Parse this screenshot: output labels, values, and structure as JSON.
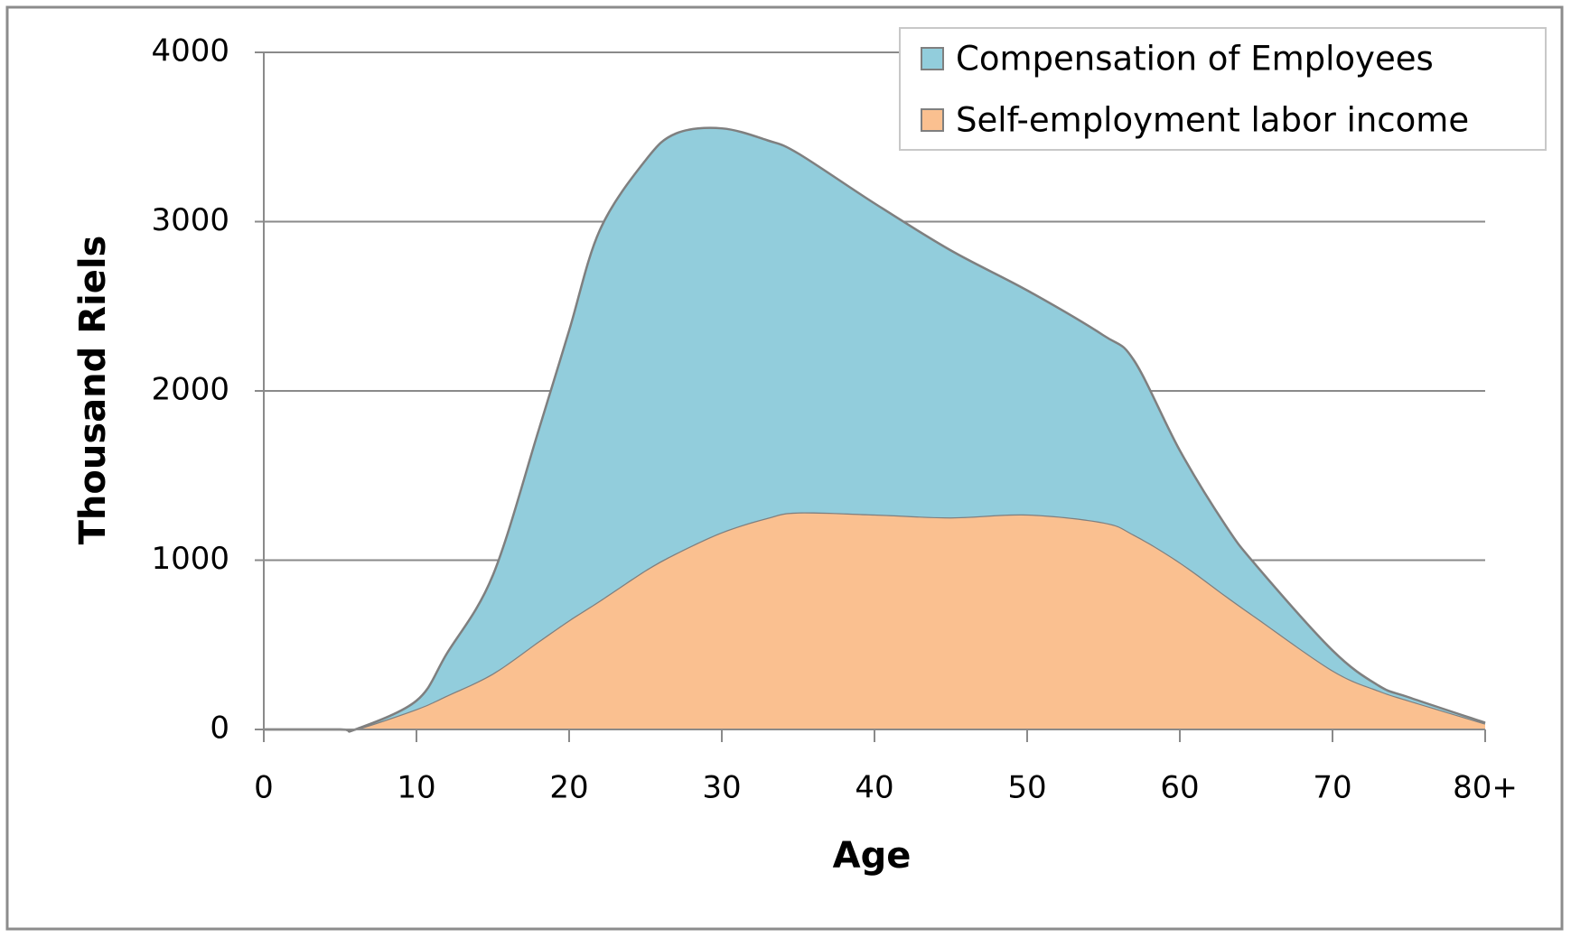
{
  "chart_data": {
    "type": "area",
    "stacked": true,
    "x_label": "Age",
    "y_label": "Thousand Riels",
    "x": [
      0,
      5,
      6,
      10,
      12,
      15,
      18,
      20,
      22,
      25,
      27,
      30,
      33,
      35,
      40,
      45,
      50,
      55,
      57,
      60,
      63,
      65,
      70,
      73,
      75,
      80
    ],
    "series": [
      {
        "name": "Compensation of Employees",
        "color": "#92cddc",
        "values": [
          0,
          0,
          0,
          50,
          250,
          580,
          1247,
          1712,
          2188,
          2422,
          2481,
          2386,
          2230,
          2121,
          1838,
          1577,
          1324,
          1105,
          1030,
          661,
          415,
          307,
          118,
          30,
          19,
          5
        ]
      },
      {
        "name": "Self-employment labor income",
        "color": "#fac090",
        "values": [
          0,
          0,
          0,
          120,
          200,
          330,
          520,
          645,
          760,
          940,
          1040,
          1165,
          1250,
          1282,
          1270,
          1253,
          1270,
          1223,
          1150,
          987,
          790,
          662,
          349,
          230,
          171,
          35
        ]
      }
    ],
    "xlim": [
      0,
      80
    ],
    "xticks": [
      0,
      10,
      20,
      30,
      40,
      50,
      60,
      70,
      {
        "value": 80,
        "label": "80+"
      }
    ],
    "ylim": [
      0,
      4000
    ],
    "yticks": [
      0,
      1000,
      2000,
      3000,
      4000
    ],
    "grid": true,
    "legend_position": "top-right"
  }
}
